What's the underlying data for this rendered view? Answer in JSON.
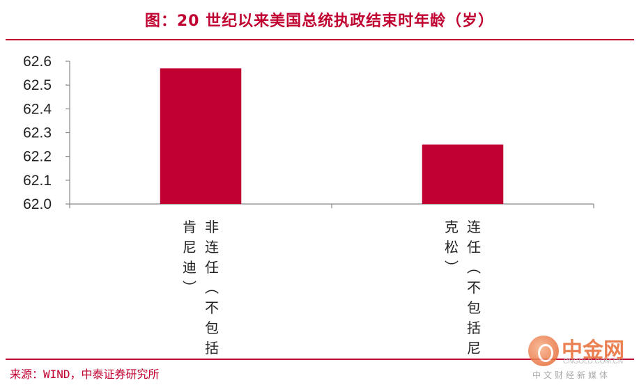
{
  "title": "图：20 世纪以来美国总统执政结束时年龄（岁）",
  "source": "来源：WIND，中泰证券研究所",
  "watermark": {
    "name": "中金网",
    "domain": "CNGOLD.COM.CN",
    "slogan": "中文财经新媒体"
  },
  "colors": {
    "accent": "#c00030",
    "bar": "#c00030"
  },
  "chart_data": {
    "type": "bar",
    "title": "图：20 世纪以来美国总统执政结束时年龄（岁）",
    "categories": [
      "非连任（不包括肯尼迪）",
      "连任（不包括尼克松）"
    ],
    "label_columns": [
      [
        {
          "text": "非连任（不包括"
        },
        {
          "text": "肯尼迪）"
        }
      ],
      [
        {
          "text": "连任（不包括尼"
        },
        {
          "text": "克松）"
        }
      ]
    ],
    "values": [
      62.57,
      62.25
    ],
    "ylim": [
      62.0,
      62.6
    ],
    "yticks": [
      "62.0",
      "62.1",
      "62.2",
      "62.3",
      "62.4",
      "62.5",
      "62.6"
    ],
    "xlabel": "",
    "ylabel": "",
    "grid": false,
    "legend": "none"
  }
}
